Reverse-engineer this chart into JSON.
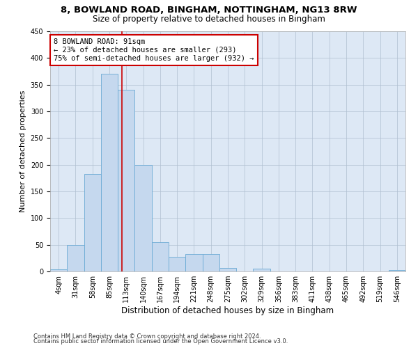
{
  "title1": "8, BOWLAND ROAD, BINGHAM, NOTTINGHAM, NG13 8RW",
  "title2": "Size of property relative to detached houses in Bingham",
  "xlabel": "Distribution of detached houses by size in Bingham",
  "ylabel": "Number of detached properties",
  "categories": [
    "4sqm",
    "31sqm",
    "58sqm",
    "85sqm",
    "113sqm",
    "140sqm",
    "167sqm",
    "194sqm",
    "221sqm",
    "248sqm",
    "275sqm",
    "302sqm",
    "329sqm",
    "356sqm",
    "383sqm",
    "411sqm",
    "438sqm",
    "465sqm",
    "492sqm",
    "519sqm",
    "546sqm"
  ],
  "bar_heights": [
    4,
    50,
    183,
    370,
    340,
    200,
    55,
    27,
    32,
    32,
    6,
    0,
    5,
    0,
    0,
    0,
    0,
    0,
    0,
    0,
    3
  ],
  "bar_color": "#c5d8ee",
  "bar_edge_color": "#6aaad4",
  "background_color": "#ffffff",
  "plot_bg_color": "#dde8f5",
  "grid_color": "#b0bfd0",
  "annotation_text": "8 BOWLAND ROAD: 91sqm\n← 23% of detached houses are smaller (293)\n75% of semi-detached houses are larger (932) →",
  "annotation_box_color": "#ffffff",
  "annotation_box_edge_color": "#cc0000",
  "vline_x": 3.73,
  "vline_color": "#cc0000",
  "ylim": [
    0,
    450
  ],
  "yticks": [
    0,
    50,
    100,
    150,
    200,
    250,
    300,
    350,
    400,
    450
  ],
  "footnote1": "Contains HM Land Registry data © Crown copyright and database right 2024.",
  "footnote2": "Contains public sector information licensed under the Open Government Licence v3.0.",
  "title1_fontsize": 9.5,
  "title2_fontsize": 8.5,
  "xlabel_fontsize": 8.5,
  "ylabel_fontsize": 8,
  "tick_fontsize": 7,
  "annotation_fontsize": 7.5,
  "footnote_fontsize": 6
}
